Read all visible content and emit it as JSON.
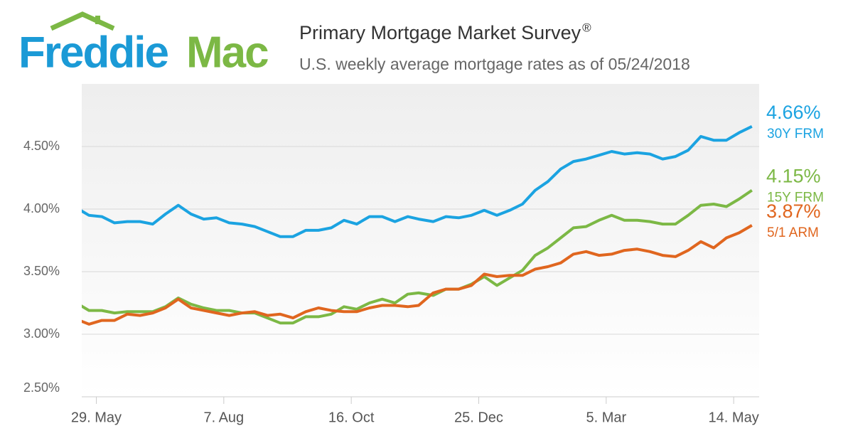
{
  "chart_data": {
    "type": "line",
    "brand": {
      "first": "Freddie",
      "second": "Mac"
    },
    "title": "Primary Mortgage Market Survey",
    "title_mark": "®",
    "subtitle": "U.S. weekly average mortgage rates as of 05/24/2018",
    "x": [
      "2017-05-18",
      "2017-05-25",
      "2017-06-01",
      "2017-06-08",
      "2017-06-15",
      "2017-06-22",
      "2017-06-29",
      "2017-07-06",
      "2017-07-13",
      "2017-07-20",
      "2017-07-27",
      "2017-08-03",
      "2017-08-10",
      "2017-08-17",
      "2017-08-24",
      "2017-08-31",
      "2017-09-07",
      "2017-09-14",
      "2017-09-21",
      "2017-09-28",
      "2017-10-05",
      "2017-10-12",
      "2017-10-19",
      "2017-10-26",
      "2017-11-02",
      "2017-11-09",
      "2017-11-16",
      "2017-11-22",
      "2017-11-30",
      "2017-12-07",
      "2017-12-14",
      "2017-12-21",
      "2017-12-28",
      "2018-01-04",
      "2018-01-11",
      "2018-01-18",
      "2018-01-25",
      "2018-02-01",
      "2018-02-08",
      "2018-02-15",
      "2018-02-22",
      "2018-03-01",
      "2018-03-08",
      "2018-03-15",
      "2018-03-22",
      "2018-03-29",
      "2018-04-05",
      "2018-04-12",
      "2018-04-19",
      "2018-04-26",
      "2018-05-03",
      "2018-05-10",
      "2018-05-17",
      "2018-05-24"
    ],
    "xlim": [
      "2017-05-21",
      "2018-05-28"
    ],
    "xticks": [
      {
        "value": "2017-05-29",
        "label": "29. May"
      },
      {
        "value": "2017-08-07",
        "label": "7. Aug"
      },
      {
        "value": "2017-10-16",
        "label": "16. Oct"
      },
      {
        "value": "2017-12-25",
        "label": "25. Dec"
      },
      {
        "value": "2018-03-05",
        "label": "5. Mar"
      },
      {
        "value": "2018-05-14",
        "label": "14. May"
      }
    ],
    "ylim": [
      2.5,
      5.0
    ],
    "yticks": [
      {
        "value": 2.5,
        "label": "2.50%"
      },
      {
        "value": 3.0,
        "label": "3.00%"
      },
      {
        "value": 3.5,
        "label": "3.50%"
      },
      {
        "value": 4.0,
        "label": "4.00%"
      },
      {
        "value": 4.5,
        "label": "4.50%"
      }
    ],
    "grid": true,
    "series": [
      {
        "name": "30Y FRM",
        "color": "#1ba3e1",
        "values": [
          4.01,
          3.95,
          3.94,
          3.89,
          3.9,
          3.9,
          3.88,
          3.96,
          4.03,
          3.96,
          3.92,
          3.93,
          3.89,
          3.88,
          3.86,
          3.82,
          3.78,
          3.78,
          3.83,
          3.83,
          3.85,
          3.91,
          3.88,
          3.94,
          3.94,
          3.9,
          3.94,
          3.92,
          3.9,
          3.94,
          3.93,
          3.95,
          3.99,
          3.95,
          3.99,
          4.04,
          4.15,
          4.22,
          4.32,
          4.38,
          4.4,
          4.43,
          4.46,
          4.44,
          4.45,
          4.44,
          4.4,
          4.42,
          4.47,
          4.58,
          4.55,
          4.55,
          4.61,
          4.66
        ],
        "value_labels": [
          null,
          null,
          null,
          null,
          null,
          null,
          null,
          null,
          null,
          null,
          null,
          null,
          null,
          null,
          null,
          null,
          null,
          null,
          null,
          null,
          null,
          null,
          null,
          null,
          null,
          null,
          null,
          null,
          null,
          null,
          null,
          null,
          null,
          null,
          null,
          null,
          null,
          null,
          null,
          null,
          null,
          null,
          null,
          null,
          null,
          null,
          null,
          null,
          null,
          null,
          null,
          null,
          null,
          "4.66%"
        ]
      },
      {
        "name": "15Y FRM",
        "color": "#7cb845",
        "values": [
          3.25,
          3.19,
          3.19,
          3.17,
          3.18,
          3.18,
          3.18,
          3.22,
          3.29,
          3.24,
          3.21,
          3.19,
          3.19,
          3.17,
          3.17,
          3.13,
          3.09,
          3.09,
          3.14,
          3.14,
          3.16,
          3.22,
          3.2,
          3.25,
          3.28,
          3.25,
          3.32,
          3.33,
          3.31,
          3.36,
          3.36,
          3.4,
          3.46,
          3.39,
          3.45,
          3.51,
          3.63,
          3.69,
          3.77,
          3.85,
          3.86,
          3.91,
          3.95,
          3.91,
          3.91,
          3.9,
          3.88,
          3.88,
          3.95,
          4.03,
          4.04,
          4.02,
          4.08,
          4.15
        ],
        "value_labels": [
          null,
          null,
          null,
          null,
          null,
          null,
          null,
          null,
          null,
          null,
          null,
          null,
          null,
          null,
          null,
          null,
          null,
          null,
          null,
          null,
          null,
          null,
          null,
          null,
          null,
          null,
          null,
          null,
          null,
          null,
          null,
          null,
          null,
          null,
          null,
          null,
          null,
          null,
          null,
          null,
          null,
          null,
          null,
          null,
          null,
          null,
          null,
          null,
          null,
          null,
          null,
          null,
          null,
          "4.15%"
        ]
      },
      {
        "name": "5/1 ARM",
        "color": "#e0661f",
        "values": [
          3.12,
          3.08,
          3.11,
          3.11,
          3.16,
          3.15,
          3.17,
          3.21,
          3.28,
          3.21,
          3.19,
          3.17,
          3.15,
          3.17,
          3.18,
          3.15,
          3.16,
          3.13,
          3.18,
          3.21,
          3.19,
          3.18,
          3.18,
          3.21,
          3.23,
          3.23,
          3.22,
          3.23,
          3.33,
          3.36,
          3.36,
          3.39,
          3.48,
          3.46,
          3.47,
          3.47,
          3.52,
          3.54,
          3.57,
          3.64,
          3.66,
          3.63,
          3.64,
          3.67,
          3.68,
          3.66,
          3.63,
          3.62,
          3.67,
          3.74,
          3.69,
          3.77,
          3.81,
          3.87
        ],
        "value_labels": [
          null,
          null,
          null,
          null,
          null,
          null,
          null,
          null,
          null,
          null,
          null,
          null,
          null,
          null,
          null,
          null,
          null,
          null,
          null,
          null,
          null,
          null,
          null,
          null,
          null,
          null,
          null,
          null,
          null,
          null,
          null,
          null,
          null,
          null,
          null,
          null,
          null,
          null,
          null,
          null,
          null,
          null,
          null,
          null,
          null,
          null,
          null,
          null,
          null,
          null,
          null,
          null,
          null,
          "3.87%"
        ]
      }
    ]
  }
}
